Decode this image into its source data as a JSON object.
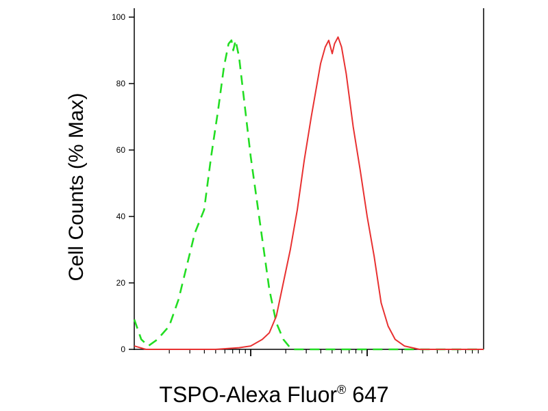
{
  "chart_data": {
    "type": "line",
    "title": "",
    "xlabel_main": "TSPO-Alexa Fluor",
    "xlabel_registered": "®",
    "xlabel_tail": " 647",
    "ylabel": "Cell Counts (% Max)",
    "x_scale": "log",
    "x_decades": 3,
    "ylim": [
      0,
      100
    ],
    "yticks": [
      "0",
      "20",
      "40",
      "60",
      "80",
      "100"
    ],
    "grid": false,
    "series": [
      {
        "color": "#22dd22",
        "style": "dashed",
        "points": [
          [
            0.0,
            9
          ],
          [
            0.06,
            3
          ],
          [
            0.12,
            1
          ],
          [
            0.2,
            3
          ],
          [
            0.3,
            7
          ],
          [
            0.38,
            15
          ],
          [
            0.45,
            25
          ],
          [
            0.52,
            35
          ],
          [
            0.6,
            42
          ],
          [
            0.66,
            58
          ],
          [
            0.72,
            72
          ],
          [
            0.77,
            85
          ],
          [
            0.81,
            92
          ],
          [
            0.835,
            93
          ],
          [
            0.85,
            90
          ],
          [
            0.87,
            93
          ],
          [
            0.9,
            88
          ],
          [
            0.94,
            76
          ],
          [
            1.0,
            58
          ],
          [
            1.08,
            38
          ],
          [
            1.16,
            18
          ],
          [
            1.22,
            8
          ],
          [
            1.28,
            3
          ],
          [
            1.35,
            0
          ],
          [
            3.0,
            0
          ]
        ]
      },
      {
        "color": "#e83030",
        "style": "solid",
        "points": [
          [
            0.0,
            1
          ],
          [
            0.1,
            0
          ],
          [
            0.4,
            0
          ],
          [
            0.7,
            0
          ],
          [
            0.9,
            0.5
          ],
          [
            1.0,
            1
          ],
          [
            1.1,
            3
          ],
          [
            1.16,
            5
          ],
          [
            1.22,
            10
          ],
          [
            1.28,
            20
          ],
          [
            1.34,
            30
          ],
          [
            1.4,
            42
          ],
          [
            1.46,
            57
          ],
          [
            1.52,
            70
          ],
          [
            1.56,
            78
          ],
          [
            1.6,
            86
          ],
          [
            1.64,
            91
          ],
          [
            1.67,
            93
          ],
          [
            1.7,
            89
          ],
          [
            1.72,
            92
          ],
          [
            1.75,
            94
          ],
          [
            1.78,
            91
          ],
          [
            1.82,
            83
          ],
          [
            1.88,
            67
          ],
          [
            1.94,
            54
          ],
          [
            2.0,
            40
          ],
          [
            2.06,
            28
          ],
          [
            2.12,
            14
          ],
          [
            2.18,
            7
          ],
          [
            2.24,
            3
          ],
          [
            2.32,
            1
          ],
          [
            2.45,
            0
          ],
          [
            3.0,
            0
          ]
        ]
      }
    ]
  }
}
